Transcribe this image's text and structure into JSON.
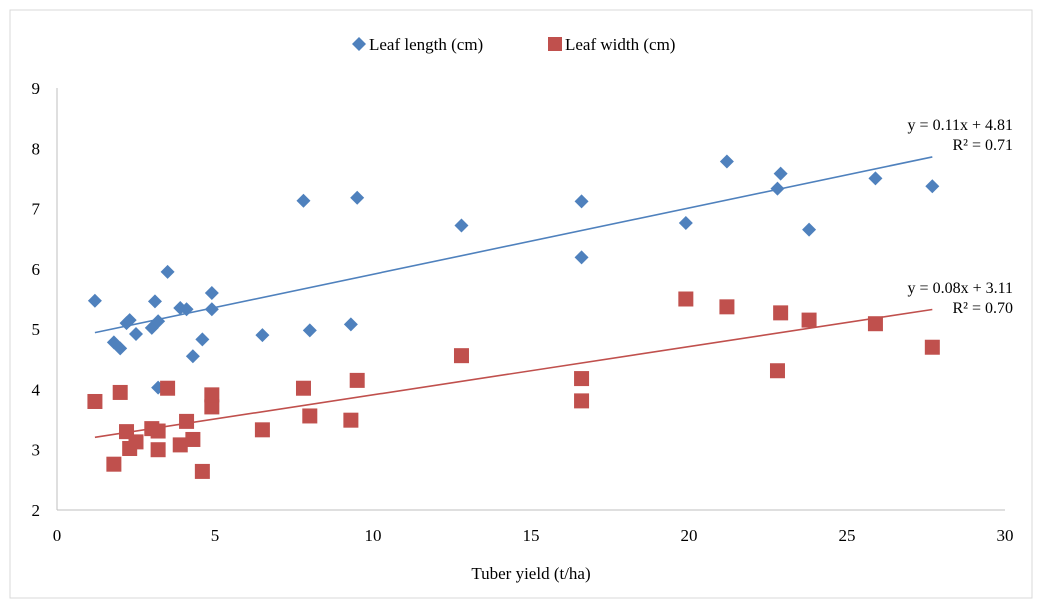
{
  "chart_data": {
    "type": "scatter",
    "title": "",
    "xlabel": "Tuber yield (t/ha)",
    "ylabel": "",
    "xlim": [
      0,
      30
    ],
    "ylim": [
      2,
      9
    ],
    "xticks": [
      0,
      5,
      10,
      15,
      20,
      25,
      30
    ],
    "yticks": [
      2,
      3,
      4,
      5,
      6,
      7,
      8,
      9
    ],
    "grid": false,
    "legend_position": "top",
    "series": [
      {
        "name": "Leaf length (cm)",
        "color": "#4f81bd",
        "marker": "diamond",
        "points": [
          [
            1.2,
            5.47
          ],
          [
            1.8,
            4.78
          ],
          [
            2.0,
            4.68
          ],
          [
            2.2,
            5.1
          ],
          [
            2.3,
            5.15
          ],
          [
            2.5,
            4.92
          ],
          [
            3.0,
            5.02
          ],
          [
            3.1,
            5.46
          ],
          [
            3.2,
            5.13
          ],
          [
            3.2,
            4.03
          ],
          [
            3.5,
            5.95
          ],
          [
            3.9,
            5.35
          ],
          [
            4.1,
            5.33
          ],
          [
            4.3,
            4.55
          ],
          [
            4.6,
            4.83
          ],
          [
            4.9,
            5.6
          ],
          [
            4.9,
            5.33
          ],
          [
            6.5,
            4.9
          ],
          [
            7.8,
            7.13
          ],
          [
            8.0,
            4.98
          ],
          [
            9.3,
            5.08
          ],
          [
            9.5,
            7.18
          ],
          [
            12.8,
            6.72
          ],
          [
            16.6,
            7.12
          ],
          [
            16.6,
            6.19
          ],
          [
            19.9,
            6.76
          ],
          [
            21.2,
            7.78
          ],
          [
            22.8,
            7.33
          ],
          [
            22.9,
            7.58
          ],
          [
            23.8,
            6.65
          ],
          [
            25.9,
            7.5
          ],
          [
            27.7,
            7.37
          ]
        ],
        "trendline": {
          "slope": 0.11,
          "intercept": 4.81,
          "x_range": [
            1.2,
            27.7
          ]
        },
        "equation": "y = 0.11x + 4.81",
        "r2": "R² = 0.71"
      },
      {
        "name": "Leaf width (cm)",
        "color": "#c0504d",
        "marker": "square",
        "points": [
          [
            1.2,
            3.8
          ],
          [
            1.8,
            2.76
          ],
          [
            2.0,
            3.95
          ],
          [
            2.2,
            3.3
          ],
          [
            2.3,
            3.02
          ],
          [
            2.5,
            3.13
          ],
          [
            3.0,
            3.35
          ],
          [
            3.2,
            3.31
          ],
          [
            3.2,
            3.0
          ],
          [
            3.5,
            4.02
          ],
          [
            3.9,
            3.08
          ],
          [
            4.1,
            3.47
          ],
          [
            4.3,
            3.17
          ],
          [
            4.6,
            2.64
          ],
          [
            4.9,
            3.71
          ],
          [
            4.9,
            3.91
          ],
          [
            6.5,
            3.33
          ],
          [
            7.8,
            4.02
          ],
          [
            8.0,
            3.56
          ],
          [
            9.3,
            3.49
          ],
          [
            9.5,
            4.15
          ],
          [
            12.8,
            4.56
          ],
          [
            16.6,
            3.81
          ],
          [
            16.6,
            4.18
          ],
          [
            19.9,
            5.5
          ],
          [
            21.2,
            5.37
          ],
          [
            22.8,
            4.31
          ],
          [
            22.9,
            5.27
          ],
          [
            23.8,
            5.15
          ],
          [
            25.9,
            5.09
          ],
          [
            27.7,
            4.7
          ]
        ],
        "trendline": {
          "slope": 0.08,
          "intercept": 3.11,
          "x_range": [
            1.2,
            27.7
          ]
        },
        "equation": "y = 0.08x + 3.11",
        "r2": "R² = 0.70"
      }
    ]
  }
}
